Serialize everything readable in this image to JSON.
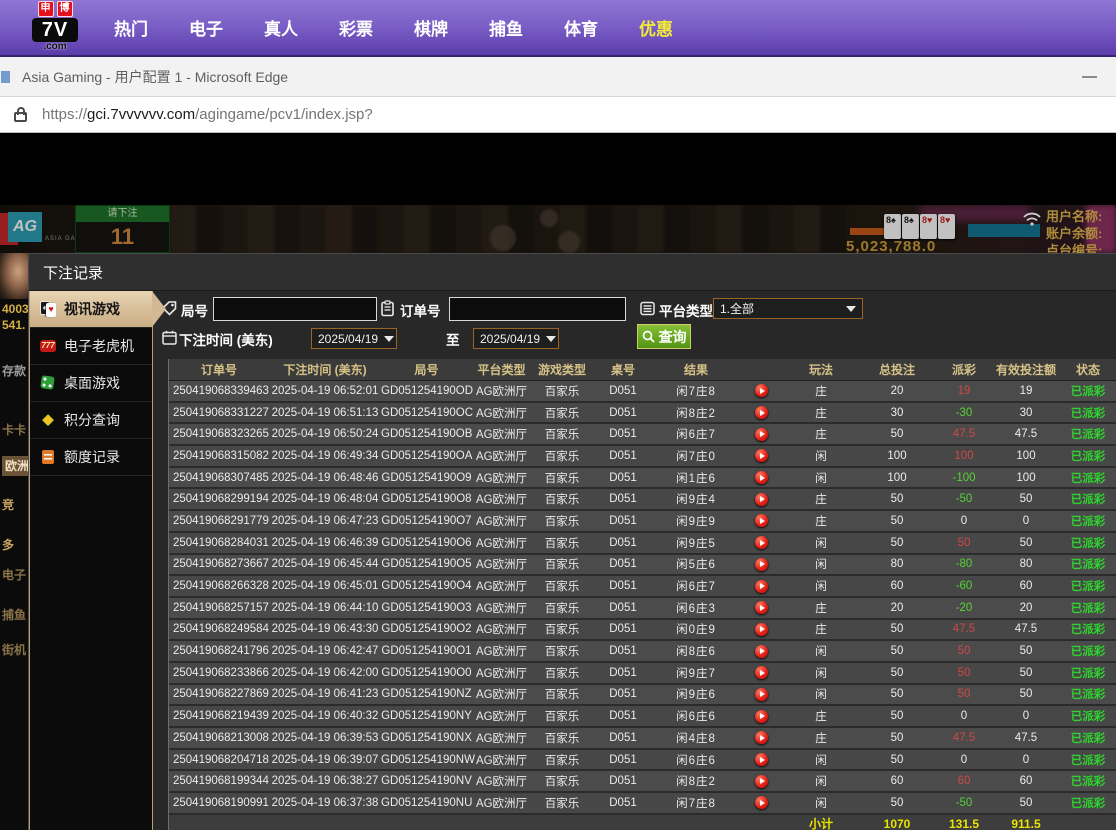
{
  "topnav": {
    "logo_badge1": "申",
    "logo_badge2": "博",
    "logo_main": "7V",
    "logo_suffix": ".com",
    "items": [
      {
        "label": "热门",
        "highlight": false
      },
      {
        "label": "电子",
        "highlight": false
      },
      {
        "label": "真人",
        "highlight": false
      },
      {
        "label": "彩票",
        "highlight": false
      },
      {
        "label": "棋牌",
        "highlight": false
      },
      {
        "label": "捕鱼",
        "highlight": false
      },
      {
        "label": "体育",
        "highlight": false
      },
      {
        "label": "优惠",
        "highlight": true
      }
    ]
  },
  "browser": {
    "window_title": "Asia Gaming - 用户配置 1 - Microsoft Edge",
    "url_scheme": "https://",
    "url_host": "gci.7vvvvvv.com",
    "url_path": "/agingame/pcv1/index.jsp?"
  },
  "background": {
    "ag_logo": "AG",
    "ag_sub": "ASIA GAMING",
    "bet_prompt": "请下注",
    "countdown": "11",
    "cards": [
      "8♠",
      "8♠",
      "8♥",
      "8♥"
    ],
    "balance_number": "5,023,788.0",
    "user_label": "用户名称:",
    "balance_label": "账户余额:",
    "table_label": "点台编号:",
    "left_items": [
      "4003",
      "541.",
      "存款",
      "卡卡",
      "欧洲",
      "竞",
      "多",
      "电子",
      "捕鱼",
      "街机"
    ]
  },
  "modal": {
    "title": "下注记录",
    "sidebar": [
      {
        "label": "视讯游戏",
        "icon": "cards-icon",
        "active": true
      },
      {
        "label": "电子老虎机",
        "icon": "slot-icon",
        "active": false
      },
      {
        "label": "桌面游戏",
        "icon": "dice-icon",
        "active": false
      },
      {
        "label": "积分查询",
        "icon": "diamond-icon",
        "active": false
      },
      {
        "label": "额度记录",
        "icon": "document-icon",
        "active": false
      }
    ],
    "filters": {
      "round_label": "局号",
      "round_value": "",
      "order_label": "订单号",
      "order_value": "",
      "platform_label": "平台类型",
      "platform_value": "1.全部",
      "time_label": "下注时间 (美东)",
      "date_from": "2025/04/19",
      "to_label": "至",
      "date_to": "2025/04/19",
      "search_label": "查询"
    },
    "table": {
      "headers": [
        "订单号",
        "下注时间 (美东)",
        "局号",
        "平台类型",
        "游戏类型",
        "桌号",
        "结果",
        "玩法",
        "总投注",
        "派彩",
        "有效投注额",
        "状态"
      ],
      "rows": [
        [
          "250419068339463",
          "2025-04-19 06:52:01",
          "GD051254190OD",
          "AG欧洲厅",
          "百家乐",
          "D051",
          "闲7庄8",
          "庄",
          "20",
          "19",
          "19",
          "已派彩"
        ],
        [
          "250419068331227",
          "2025-04-19 06:51:13",
          "GD051254190OC",
          "AG欧洲厅",
          "百家乐",
          "D051",
          "闲8庄2",
          "庄",
          "30",
          "-30",
          "30",
          "已派彩"
        ],
        [
          "250419068323265",
          "2025-04-19 06:50:24",
          "GD051254190OB",
          "AG欧洲厅",
          "百家乐",
          "D051",
          "闲6庄7",
          "庄",
          "50",
          "47.5",
          "47.5",
          "已派彩"
        ],
        [
          "250419068315082",
          "2025-04-19 06:49:34",
          "GD051254190OA",
          "AG欧洲厅",
          "百家乐",
          "D051",
          "闲7庄0",
          "闲",
          "100",
          "100",
          "100",
          "已派彩"
        ],
        [
          "250419068307485",
          "2025-04-19 06:48:46",
          "GD051254190O9",
          "AG欧洲厅",
          "百家乐",
          "D051",
          "闲1庄6",
          "闲",
          "100",
          "-100",
          "100",
          "已派彩"
        ],
        [
          "250419068299194",
          "2025-04-19 06:48:04",
          "GD051254190O8",
          "AG欧洲厅",
          "百家乐",
          "D051",
          "闲9庄4",
          "庄",
          "50",
          "-50",
          "50",
          "已派彩"
        ],
        [
          "250419068291779",
          "2025-04-19 06:47:23",
          "GD051254190O7",
          "AG欧洲厅",
          "百家乐",
          "D051",
          "闲9庄9",
          "庄",
          "50",
          "0",
          "0",
          "已派彩"
        ],
        [
          "250419068284031",
          "2025-04-19 06:46:39",
          "GD051254190O6",
          "AG欧洲厅",
          "百家乐",
          "D051",
          "闲9庄5",
          "闲",
          "50",
          "50",
          "50",
          "已派彩"
        ],
        [
          "250419068273667",
          "2025-04-19 06:45:44",
          "GD051254190O5",
          "AG欧洲厅",
          "百家乐",
          "D051",
          "闲5庄6",
          "闲",
          "80",
          "-80",
          "80",
          "已派彩"
        ],
        [
          "250419068266328",
          "2025-04-19 06:45:01",
          "GD051254190O4",
          "AG欧洲厅",
          "百家乐",
          "D051",
          "闲6庄7",
          "闲",
          "60",
          "-60",
          "60",
          "已派彩"
        ],
        [
          "250419068257157",
          "2025-04-19 06:44:10",
          "GD051254190O3",
          "AG欧洲厅",
          "百家乐",
          "D051",
          "闲6庄3",
          "庄",
          "20",
          "-20",
          "20",
          "已派彩"
        ],
        [
          "250419068249584",
          "2025-04-19 06:43:30",
          "GD051254190O2",
          "AG欧洲厅",
          "百家乐",
          "D051",
          "闲0庄9",
          "庄",
          "50",
          "47.5",
          "47.5",
          "已派彩"
        ],
        [
          "250419068241796",
          "2025-04-19 06:42:47",
          "GD051254190O1",
          "AG欧洲厅",
          "百家乐",
          "D051",
          "闲8庄6",
          "闲",
          "50",
          "50",
          "50",
          "已派彩"
        ],
        [
          "250419068233866",
          "2025-04-19 06:42:00",
          "GD051254190O0",
          "AG欧洲厅",
          "百家乐",
          "D051",
          "闲9庄7",
          "闲",
          "50",
          "50",
          "50",
          "已派彩"
        ],
        [
          "250419068227869",
          "2025-04-19 06:41:23",
          "GD051254190NZ",
          "AG欧洲厅",
          "百家乐",
          "D051",
          "闲9庄6",
          "闲",
          "50",
          "50",
          "50",
          "已派彩"
        ],
        [
          "250419068219439",
          "2025-04-19 06:40:32",
          "GD051254190NY",
          "AG欧洲厅",
          "百家乐",
          "D051",
          "闲6庄6",
          "庄",
          "50",
          "0",
          "0",
          "已派彩"
        ],
        [
          "250419068213008",
          "2025-04-19 06:39:53",
          "GD051254190NX",
          "AG欧洲厅",
          "百家乐",
          "D051",
          "闲4庄8",
          "庄",
          "50",
          "47.5",
          "47.5",
          "已派彩"
        ],
        [
          "250419068204718",
          "2025-04-19 06:39:07",
          "GD051254190NW",
          "AG欧洲厅",
          "百家乐",
          "D051",
          "闲6庄6",
          "闲",
          "50",
          "0",
          "0",
          "已派彩"
        ],
        [
          "250419068199344",
          "2025-04-19 06:38:27",
          "GD051254190NV",
          "AG欧洲厅",
          "百家乐",
          "D051",
          "闲8庄2",
          "闲",
          "60",
          "60",
          "60",
          "已派彩"
        ],
        [
          "250419068190991",
          "2025-04-19 06:37:38",
          "GD051254190NU",
          "AG欧洲厅",
          "百家乐",
          "D051",
          "闲7庄8",
          "闲",
          "50",
          "-50",
          "50",
          "已派彩"
        ]
      ],
      "footer": {
        "label": "小计",
        "total_bet": "1070",
        "total_payout": "131.5",
        "total_valid": "911.5"
      }
    }
  }
}
